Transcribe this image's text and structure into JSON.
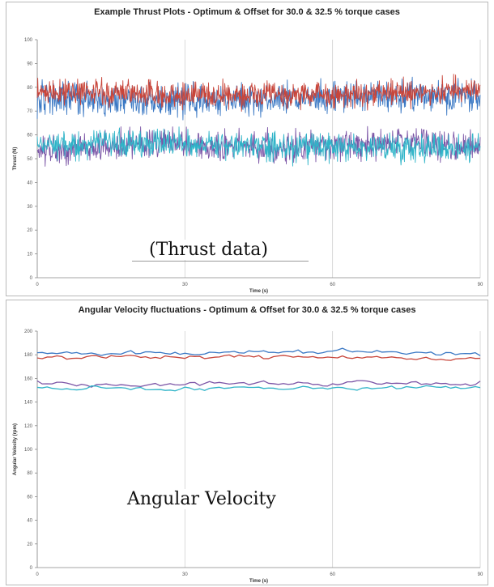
{
  "chart_data": [
    {
      "type": "line",
      "title": "Example Thrust Plots - Optimum & Offset for 30.0 & 32.5 % torque cases",
      "xlabel": "Time (s)",
      "ylabel": "Thrust (N)",
      "xlim": [
        0,
        90
      ],
      "ylim": [
        0,
        100
      ],
      "x_ticks": [
        "0",
        "30",
        "60",
        "90"
      ],
      "y_ticks": [
        "0",
        "10",
        "20",
        "30",
        "40",
        "50",
        "60",
        "70",
        "80",
        "90",
        "100"
      ],
      "grid": "vertical",
      "series": [
        {
          "color": "#3a78c4",
          "mean": [
            75,
            75,
            74.5,
            75,
            75,
            76,
            76.5,
            77
          ],
          "noise": 3.2
        },
        {
          "color": "#c8453a",
          "mean": [
            78,
            78,
            77,
            76.5,
            76.5,
            77,
            78,
            79
          ],
          "noise": 2.6
        },
        {
          "color": "#7b55a6",
          "mean": [
            54,
            55,
            56.5,
            55,
            55,
            56,
            56.5,
            55
          ],
          "noise": 3.0
        },
        {
          "color": "#2fb4c8",
          "mean": [
            56,
            56,
            57,
            55.5,
            54.5,
            54.5,
            55,
            54.5
          ],
          "noise": 2.8
        }
      ],
      "annotation": "(Thrust data)"
    },
    {
      "type": "line",
      "title": "Angular Velocity fluctuations - Optimum & Offset for 30.0 & 32.5 % torque cases",
      "xlabel": "Time (s)",
      "ylabel": "Angular Velocity (rpm)",
      "xlim": [
        0,
        90
      ],
      "ylim": [
        0,
        200
      ],
      "x_ticks": [
        "0",
        "30",
        "60",
        "90"
      ],
      "y_ticks": [
        "0",
        "20",
        "40",
        "60",
        "80",
        "100",
        "120",
        "140",
        "160",
        "180",
        "200"
      ],
      "grid": "vertical",
      "series": [
        {
          "color": "#3a78c4",
          "mean": [
            181,
            182,
            181,
            182,
            182,
            183,
            182,
            181
          ],
          "noise": 1.5
        },
        {
          "color": "#c8453a",
          "mean": [
            177,
            178,
            177,
            178,
            178,
            178,
            177,
            177
          ],
          "noise": 1.6
        },
        {
          "color": "#7b55a6",
          "mean": [
            156,
            156,
            155,
            156,
            156,
            156,
            156,
            156
          ],
          "noise": 2.0
        },
        {
          "color": "#2fb4c8",
          "mean": [
            151,
            152,
            151,
            152,
            152,
            152,
            152,
            152
          ],
          "noise": 1.3
        }
      ],
      "annotation": "Angular Velocity"
    }
  ]
}
